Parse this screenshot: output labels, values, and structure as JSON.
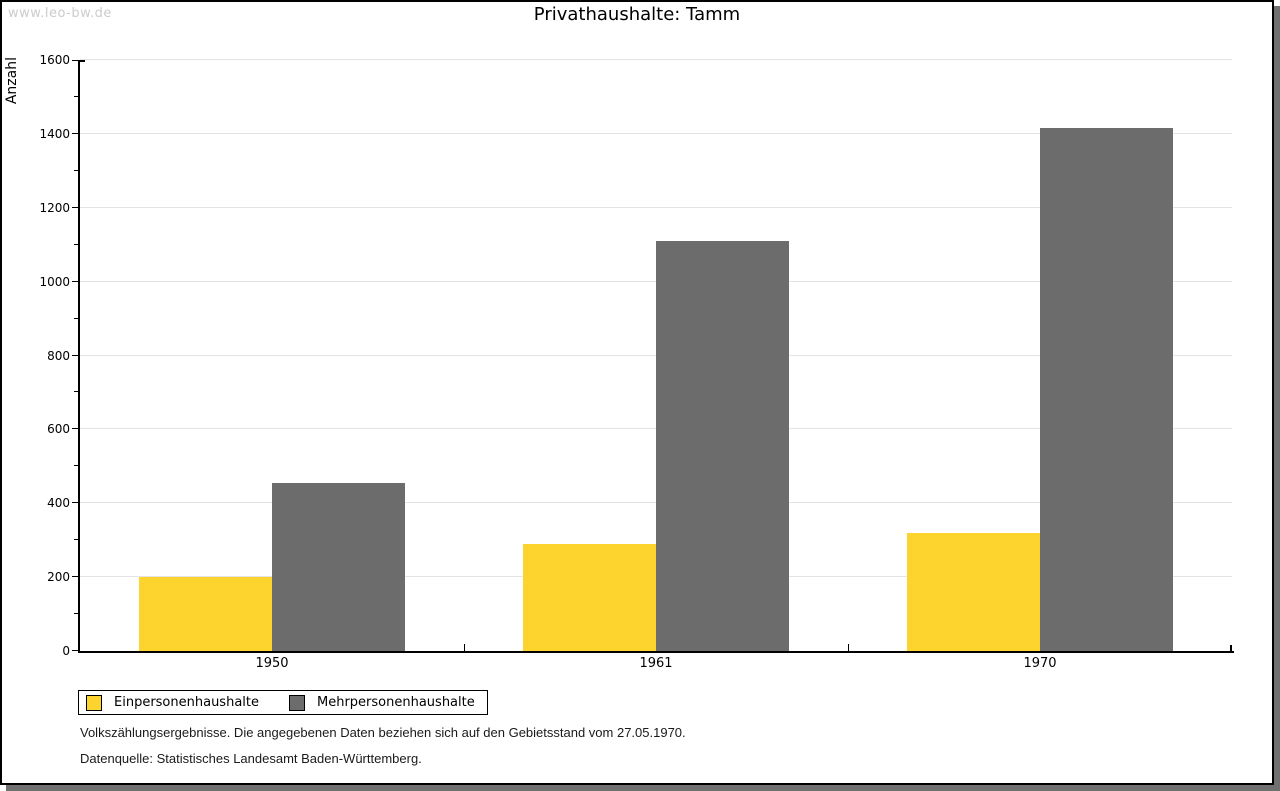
{
  "watermark": "www.leo-bw.de",
  "title": "Privathaushalte: Tamm",
  "y_axis_title": "Anzahl",
  "legend": [
    {
      "label": "Einpersonenhaushalte",
      "color": "#FCD42D"
    },
    {
      "label": "Mehrpersonenhaushalte",
      "color": "#6C6C6C"
    }
  ],
  "footer": {
    "line1": "Volkszählungsergebnisse. Die angegebenen Daten beziehen sich auf den Gebietsstand vom 27.05.1970.",
    "line2": "Datenquelle: Statistisches Landesamt Baden-Württemberg."
  },
  "chart_data": {
    "type": "bar",
    "title": "Privathaushalte: Tamm",
    "xlabel": "",
    "ylabel": "Anzahl",
    "categories": [
      "1950",
      "1961",
      "1970"
    ],
    "series": [
      {
        "name": "Einpersonenhaushalte",
        "color": "#FCD42D",
        "values": [
          200,
          290,
          320
        ]
      },
      {
        "name": "Mehrpersonenhaushalte",
        "color": "#6C6C6C",
        "values": [
          455,
          1110,
          1415
        ]
      }
    ],
    "ylim": [
      0,
      1600
    ],
    "ytick_step": 200,
    "yminor_tick_step": 100,
    "grid": true,
    "gridline_color": "#e3e3e3",
    "legend_position": "bottom-left"
  }
}
